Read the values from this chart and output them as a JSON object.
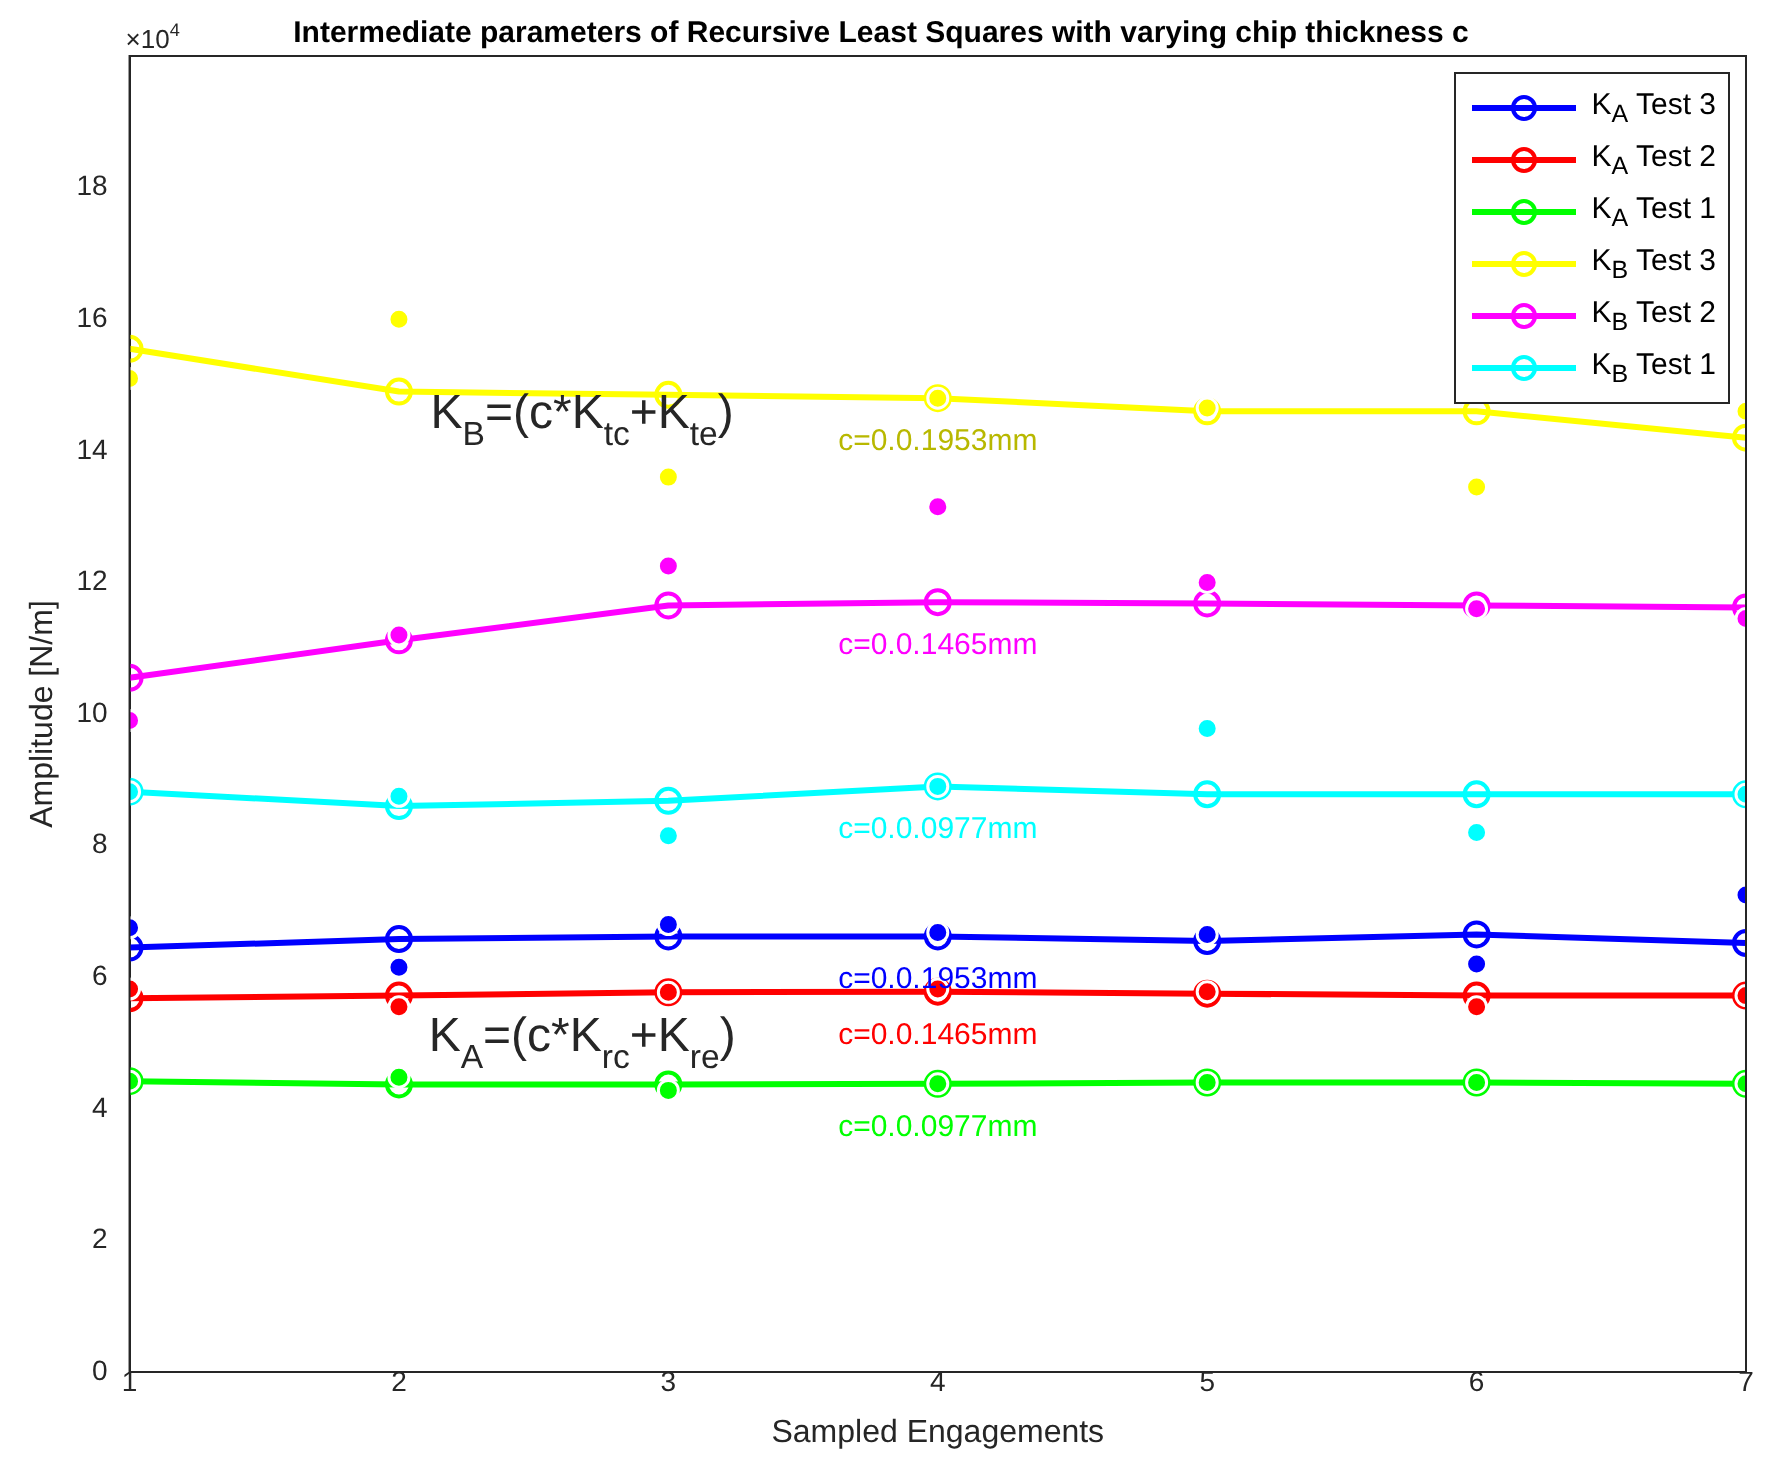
{
  "chart_data": {
    "type": "line",
    "title": "Intermediate parameters of Recursive Least Squares with varying chip thickness c",
    "xlabel": "Sampled Engagements",
    "ylabel": "Amplitude [N/m]",
    "x": [
      1,
      2,
      3,
      4,
      5,
      6,
      7
    ],
    "series": [
      {
        "name": "K$_{A}$ Test 3",
        "color": "#0000ff",
        "values": [
          6.45,
          6.58,
          6.62,
          6.62,
          6.55,
          6.65,
          6.52
        ]
      },
      {
        "name": "K$_{A}$ Test 2",
        "color": "#ff0000",
        "values": [
          5.68,
          5.72,
          5.77,
          5.78,
          5.75,
          5.72,
          5.72
        ]
      },
      {
        "name": "K$_{A}$ Test 1",
        "color": "#00ff00",
        "values": [
          4.42,
          4.37,
          4.37,
          4.38,
          4.4,
          4.4,
          4.38
        ]
      },
      {
        "name": "K$_{B}$ Test 3",
        "color": "#ffff00",
        "values": [
          15.55,
          14.9,
          14.85,
          14.8,
          14.6,
          14.6,
          14.2
        ]
      },
      {
        "name": "K$_{B}$ Test 2",
        "color": "#ff00ff",
        "values": [
          10.55,
          11.12,
          11.65,
          11.7,
          11.68,
          11.65,
          11.62
        ]
      },
      {
        "name": "K$_{B}$ Test 1",
        "color": "#00ffff",
        "values": [
          8.82,
          8.6,
          8.68,
          8.9,
          8.78,
          8.78,
          8.78
        ]
      },
      {
        "type": "scatter",
        "color": "#0000ff",
        "values": [
          6.75,
          6.15,
          6.8,
          6.68,
          6.65,
          6.2,
          7.25
        ]
      },
      {
        "type": "scatter",
        "color": "#ff0000",
        "values": [
          5.82,
          5.55,
          5.77,
          5.82,
          5.78,
          5.55,
          5.72
        ]
      },
      {
        "type": "scatter",
        "color": "#00ff00",
        "values": [
          4.42,
          4.48,
          4.28,
          4.38,
          4.4,
          4.4,
          4.38
        ]
      },
      {
        "type": "scatter",
        "color": "#ffff00",
        "values": [
          15.1,
          16.0,
          13.6,
          14.8,
          14.65,
          13.45,
          14.6
        ]
      },
      {
        "type": "scatter",
        "color": "#ff00ff",
        "values": [
          9.9,
          11.2,
          12.25,
          13.15,
          12.0,
          11.6,
          11.45
        ]
      },
      {
        "type": "scatter",
        "color": "#00ffff",
        "values": [
          8.82,
          8.75,
          8.15,
          8.9,
          9.78,
          8.2,
          8.78
        ]
      }
    ],
    "annotations": [
      "×10$^{4}$",
      "K$_{B}$=(c*K$_{tc}$+K$_{te}$)",
      "K$_{A}$=(c*K$_{rc}$+K$_{re}$)",
      "c=0.0.1953mm",
      "c=0.0.1465mm",
      "c=0.0.0977mm",
      "c=0.0.1953mm",
      "c=0.0.1465mm",
      "c=0.0.0977mm"
    ],
    "xlim": [
      1,
      7
    ],
    "xticks": [
      1,
      2,
      3,
      4,
      5,
      6,
      7
    ],
    "ylim": [
      0,
      20
    ],
    "yticks": [
      0,
      2,
      4,
      6,
      8,
      10,
      12,
      14,
      16,
      18
    ],
    "grid": false,
    "legend": "top right",
    "marker": "circle",
    "line_style": "solid"
  }
}
